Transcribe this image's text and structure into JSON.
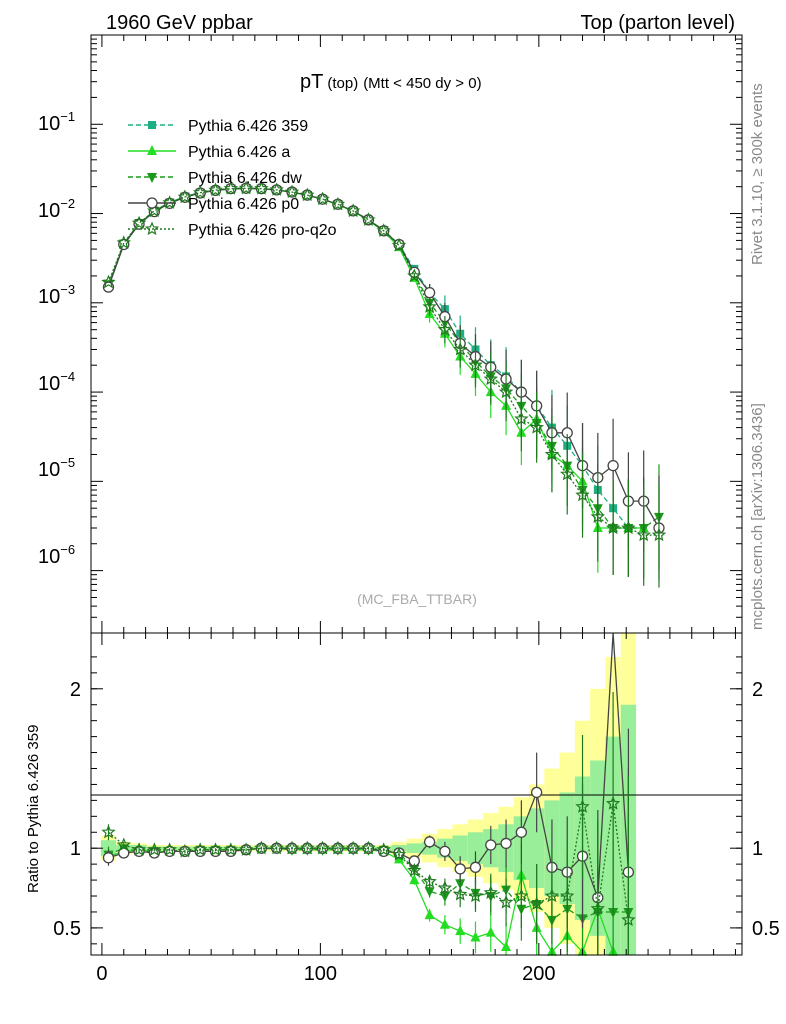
{
  "header": {
    "left": "1960 GeV ppbar",
    "right": "Top (parton level)"
  },
  "side_labels": {
    "rivet": "Rivet 3.1.10, ≥ 300k events",
    "mcplots": "mcplots.cern.ch [arXiv:1306.3436]"
  },
  "colors": {
    "s359": "#1fae84",
    "a": "#22dd22",
    "dw": "#1a9a1a",
    "p0": "#444444",
    "proq2o": "#1f7a1f",
    "band_yellow": "#ffff99",
    "band_green": "#99ee99"
  },
  "chart_data": [
    {
      "type": "line",
      "title": "pT",
      "title_sub": "(top)",
      "title_cut": "(Mtt < 450 dy > 0)",
      "watermark": "(MC_FBA_TTBAR)",
      "yscale": "log",
      "xlim": [
        -5,
        293
      ],
      "ylim": [
        2e-07,
        1
      ],
      "ytick_labels": [
        "10^-1",
        "10^-2",
        "10^-3",
        "10^-4",
        "10^-5",
        "10^-6"
      ],
      "legend": [
        "Pythia 6.426 359",
        "Pythia 6.426 a",
        "Pythia 6.426 dw",
        "Pythia 6.426 p0",
        "Pythia 6.426 pro-q2o"
      ],
      "legend_position": "top-left",
      "x": [
        3,
        10,
        17,
        24,
        31,
        38,
        45,
        52,
        59,
        66,
        73,
        80,
        87,
        94,
        101,
        108,
        115,
        122,
        129,
        136,
        143,
        150,
        157,
        164,
        171,
        178,
        185,
        192,
        199,
        206,
        213,
        220,
        227,
        234,
        241,
        248,
        255
      ],
      "series": [
        {
          "name": "Pythia 6.426 359",
          "key": "s359",
          "marker": "square",
          "dash": "dashed",
          "values": [
            0.0016,
            0.0046,
            0.0078,
            0.0108,
            0.0133,
            0.0155,
            0.0172,
            0.0183,
            0.019,
            0.0192,
            0.019,
            0.0184,
            0.0174,
            0.0161,
            0.0145,
            0.0127,
            0.0107,
            0.0085,
            0.0065,
            0.0045,
            0.0024,
            0.0013,
            0.00085,
            0.00045,
            0.0003,
            0.0002,
            0.00015,
            0.0001,
            7e-05,
            4e-05,
            2.5e-05,
            1.5e-05,
            8e-06,
            5e-06,
            3e-06,
            null,
            null
          ]
        },
        {
          "name": "Pythia 6.426 a",
          "key": "a",
          "marker": "triangle-up",
          "dash": "solid",
          "values": [
            0.00155,
            0.0045,
            0.0077,
            0.0106,
            0.0131,
            0.0152,
            0.017,
            0.0182,
            0.0188,
            0.019,
            0.0189,
            0.0183,
            0.0173,
            0.016,
            0.0144,
            0.0126,
            0.0106,
            0.0084,
            0.0063,
            0.0042,
            0.0019,
            0.00075,
            0.00045,
            0.00025,
            0.00016,
            0.0001,
            7e-05,
            3.5e-05,
            5e-05,
            2e-05,
            1.5e-05,
            1e-05,
            3e-06,
            3e-06,
            3e-06,
            3e-06,
            null
          ]
        },
        {
          "name": "Pythia 6.426 dw",
          "key": "dw",
          "marker": "triangle-down",
          "dash": "dashed",
          "values": [
            0.0016,
            0.0046,
            0.0078,
            0.0107,
            0.0132,
            0.0154,
            0.0171,
            0.0183,
            0.019,
            0.0192,
            0.019,
            0.0184,
            0.0174,
            0.0161,
            0.0145,
            0.0127,
            0.0107,
            0.0085,
            0.0065,
            0.0045,
            0.0021,
            0.001,
            0.0006,
            0.00035,
            0.00022,
            0.00015,
            0.00011,
            7e-05,
            4.5e-05,
            2.5e-05,
            1.5e-05,
            8e-06,
            5e-06,
            3e-06,
            3e-06,
            3e-06,
            4e-06
          ]
        },
        {
          "name": "Pythia 6.426 p0",
          "key": "p0",
          "marker": "circle",
          "dash": "solid",
          "values": [
            0.0015,
            0.0045,
            0.0076,
            0.0105,
            0.013,
            0.0152,
            0.017,
            0.0182,
            0.019,
            0.0192,
            0.019,
            0.0184,
            0.0174,
            0.0161,
            0.0145,
            0.0127,
            0.0107,
            0.0085,
            0.0064,
            0.0045,
            0.0022,
            0.0013,
            0.0007,
            0.00035,
            0.00025,
            0.00019,
            0.00014,
            0.0001,
            7e-05,
            3.5e-05,
            3.5e-05,
            1.5e-05,
            1.1e-05,
            1.5e-05,
            6e-06,
            6e-06,
            3e-06
          ]
        },
        {
          "name": "Pythia 6.426 pro-q2o",
          "key": "proq2o",
          "marker": "star",
          "dash": "dotted",
          "values": [
            0.0017,
            0.0047,
            0.0078,
            0.0107,
            0.0132,
            0.0153,
            0.0171,
            0.0183,
            0.019,
            0.0192,
            0.019,
            0.0184,
            0.0174,
            0.0161,
            0.0145,
            0.0127,
            0.0107,
            0.0085,
            0.0064,
            0.0044,
            0.002,
            0.0009,
            0.0005,
            0.0003,
            0.0002,
            0.00014,
            0.0001,
            5e-05,
            4e-05,
            2e-05,
            1.2e-05,
            7e-06,
            4e-06,
            3e-06,
            3e-06,
            2.5e-06,
            2.5e-06
          ]
        }
      ]
    },
    {
      "type": "line",
      "title": "ratio",
      "ylabel": "Ratio to Pythia 6.426 359",
      "xlim": [
        -5,
        293
      ],
      "ylim": [
        0.33,
        2.35
      ],
      "xticks": [
        0,
        100,
        200
      ],
      "yticks": [
        0.5,
        1,
        2
      ],
      "band_x": [
        3,
        10,
        17,
        24,
        31,
        38,
        45,
        52,
        59,
        66,
        73,
        80,
        87,
        94,
        101,
        108,
        115,
        122,
        129,
        136,
        143,
        150,
        157,
        164,
        171,
        178,
        185,
        192,
        199,
        206,
        213,
        220,
        227,
        234,
        241
      ],
      "band_green_half": [
        0.05,
        0.02,
        0.02,
        0.01,
        0.01,
        0.01,
        0.01,
        0.01,
        0.01,
        0.01,
        0.01,
        0.01,
        0.01,
        0.01,
        0.01,
        0.01,
        0.01,
        0.01,
        0.01,
        0.02,
        0.03,
        0.04,
        0.06,
        0.08,
        0.1,
        0.12,
        0.15,
        0.2,
        0.25,
        0.3,
        0.35,
        0.45,
        0.55,
        0.7,
        0.9
      ],
      "band_yellow_half": [
        0.08,
        0.04,
        0.03,
        0.02,
        0.02,
        0.02,
        0.02,
        0.02,
        0.02,
        0.02,
        0.02,
        0.02,
        0.02,
        0.02,
        0.02,
        0.02,
        0.02,
        0.02,
        0.02,
        0.04,
        0.06,
        0.09,
        0.12,
        0.15,
        0.18,
        0.22,
        0.26,
        0.32,
        0.4,
        0.5,
        0.6,
        0.8,
        1.0,
        1.2,
        1.5
      ],
      "series": [
        {
          "name": "Pythia 6.426 a",
          "key": "a",
          "values": [
            0.95,
            0.98,
            0.99,
            0.98,
            0.98,
            0.98,
            0.99,
            0.99,
            0.99,
            0.99,
            1.0,
            1.0,
            0.99,
            0.99,
            0.99,
            0.99,
            0.99,
            0.99,
            0.98,
            0.93,
            0.8,
            0.58,
            0.52,
            0.48,
            0.44,
            0.47,
            0.38,
            0.83,
            0.5,
            0.35,
            0.45,
            0.35,
            0.62,
            0.35,
            null
          ]
        },
        {
          "name": "Pythia 6.426 dw",
          "key": "dw",
          "values": [
            0.96,
            1.0,
            0.98,
            0.98,
            0.98,
            0.98,
            0.99,
            0.99,
            0.99,
            0.99,
            1.0,
            1.0,
            0.99,
            0.99,
            0.99,
            0.99,
            0.99,
            0.99,
            0.99,
            0.97,
            0.87,
            0.73,
            0.7,
            0.78,
            0.72,
            0.7,
            0.74,
            0.62,
            0.65,
            0.55,
            0.62,
            0.56,
            0.6,
            0.6,
            0.6
          ]
        },
        {
          "name": "Pythia 6.426 p0",
          "key": "p0",
          "values": [
            0.94,
            0.97,
            0.98,
            0.97,
            0.98,
            0.98,
            0.98,
            0.98,
            0.98,
            0.99,
            1.0,
            1.0,
            1.0,
            1.0,
            1.0,
            1.0,
            1.0,
            1.0,
            0.98,
            0.97,
            0.92,
            1.04,
            0.98,
            0.87,
            0.88,
            1.02,
            1.03,
            1.1,
            1.35,
            0.88,
            0.85,
            0.95,
            0.69,
            2.5,
            0.85
          ]
        },
        {
          "name": "Pythia 6.426 pro-q2o",
          "key": "proq2o",
          "values": [
            1.1,
            1.02,
            0.99,
            0.99,
            0.99,
            0.98,
            0.99,
            0.99,
            0.99,
            0.99,
            1.0,
            1.0,
            1.0,
            1.0,
            1.0,
            1.0,
            1.0,
            1.0,
            0.99,
            0.96,
            0.86,
            0.79,
            0.75,
            0.71,
            0.7,
            0.72,
            0.66,
            0.7,
            0.65,
            0.7,
            0.7,
            1.26,
            0.62,
            1.28,
            0.55
          ]
        }
      ]
    }
  ]
}
